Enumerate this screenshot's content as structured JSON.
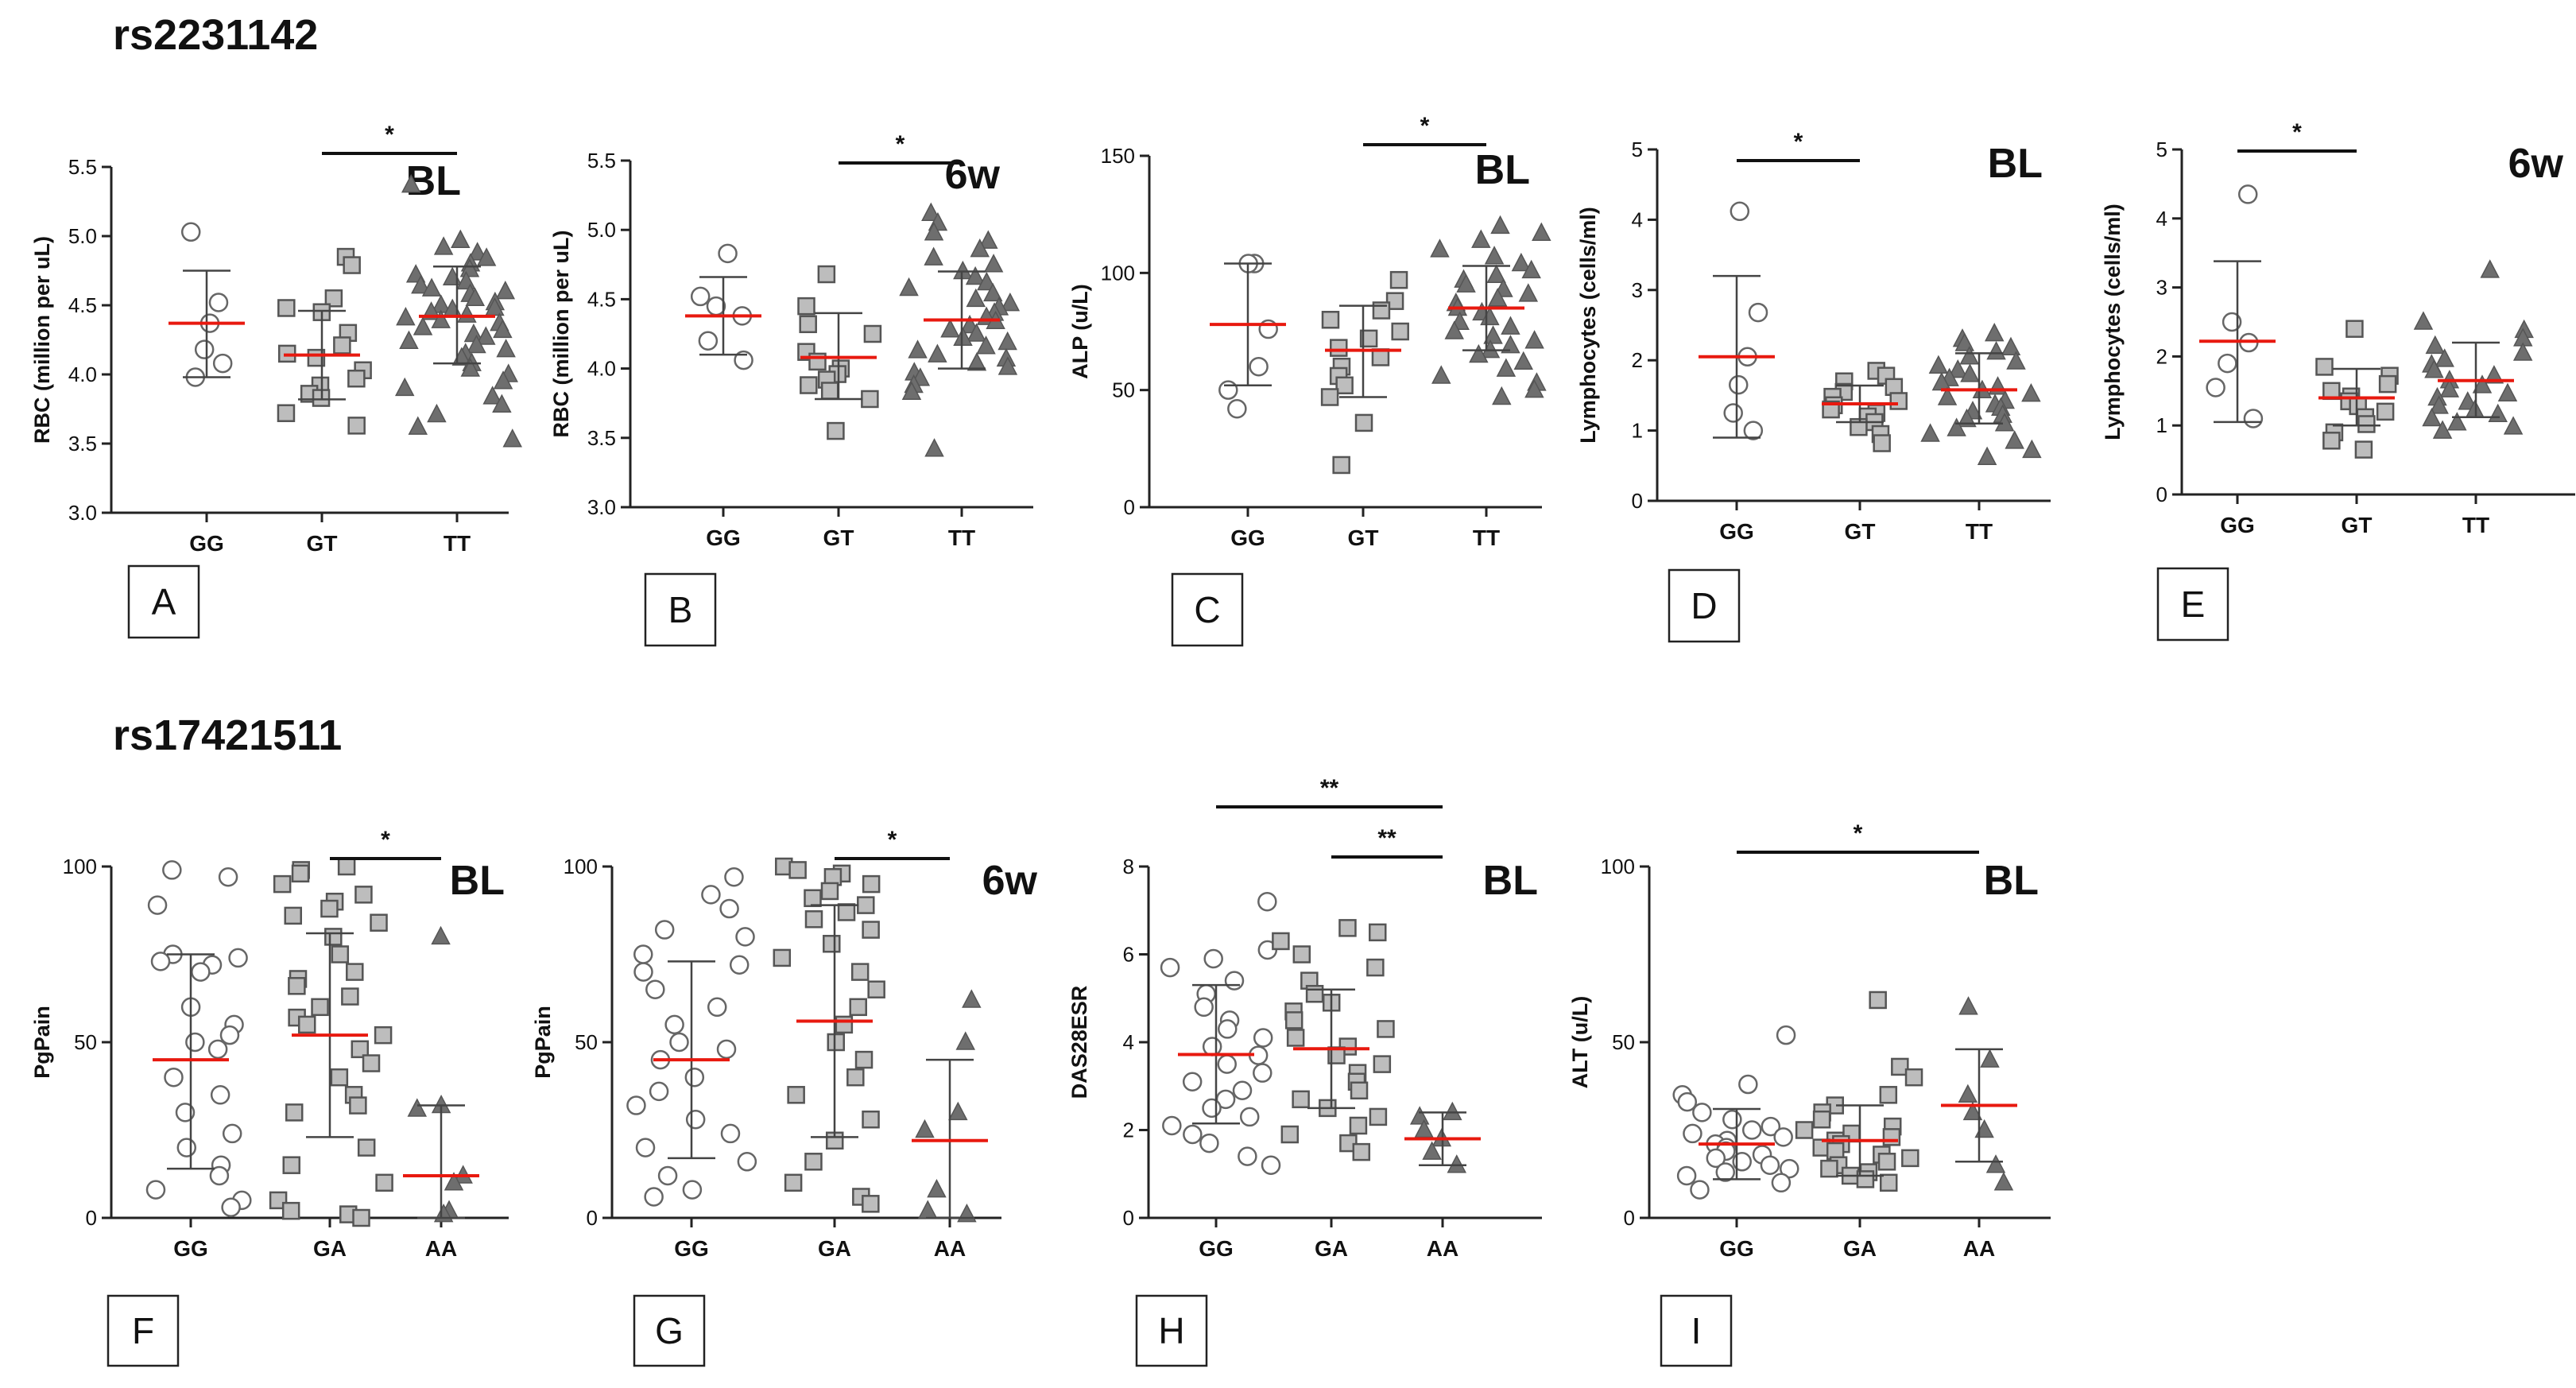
{
  "figure": {
    "section_labels": [
      "rs2231142",
      "rs17421511"
    ]
  },
  "chart_data": [
    {
      "panel": "A",
      "type": "scatter",
      "timepoint": "BL",
      "ylabel": "RBC (million per uL)",
      "ylim": [
        3.0,
        5.5
      ],
      "yticks": [
        "3.0",
        "3.5",
        "4.0",
        "4.5",
        "5.0",
        "5.5"
      ],
      "categories": [
        "GG",
        "GT",
        "TT"
      ],
      "groups": [
        {
          "name": "GG",
          "marker": "circle",
          "mean": 4.37,
          "sd": [
            3.98,
            4.75
          ],
          "values": [
            5.03,
            4.52,
            4.37,
            4.18,
            3.98,
            4.08
          ]
        },
        {
          "name": "GT",
          "marker": "square",
          "mean": 4.14,
          "sd": [
            3.82,
            4.46
          ],
          "values": [
            4.85,
            4.79,
            4.55,
            4.48,
            4.45,
            4.3,
            4.21,
            4.15,
            4.12,
            4.03,
            3.97,
            3.92,
            3.86,
            3.83,
            3.72,
            3.63
          ]
        },
        {
          "name": "TT",
          "marker": "triangle",
          "mean": 4.42,
          "sd": [
            4.08,
            4.78
          ],
          "values": [
            5.37,
            4.97,
            4.92,
            4.88,
            4.84,
            4.8,
            4.76,
            4.72,
            4.7,
            4.67,
            4.64,
            4.62,
            4.6,
            4.58,
            4.55,
            4.52,
            4.5,
            4.48,
            4.47,
            4.45,
            4.43,
            4.41,
            4.39,
            4.37,
            4.34,
            4.32,
            4.29,
            4.27,
            4.24,
            4.21,
            4.18,
            4.15,
            4.12,
            4.08,
            4.04,
            4.0,
            3.95,
            3.9,
            3.84,
            3.78,
            3.71,
            3.62,
            3.53
          ]
        }
      ],
      "comparisons": [
        {
          "from": "GT",
          "to": "TT",
          "label": "*"
        }
      ]
    },
    {
      "panel": "B",
      "type": "scatter",
      "timepoint": "6w",
      "ylabel": "RBC (million per uL)",
      "ylim": [
        3.0,
        5.5
      ],
      "yticks": [
        "3.0",
        "3.5",
        "4.0",
        "4.5",
        "5.0",
        "5.5"
      ],
      "categories": [
        "GG",
        "GT",
        "TT"
      ],
      "groups": [
        {
          "name": "GG",
          "marker": "circle",
          "mean": 4.38,
          "sd": [
            4.1,
            4.66
          ],
          "values": [
            4.83,
            4.52,
            4.45,
            4.38,
            4.2,
            4.06
          ]
        },
        {
          "name": "GT",
          "marker": "square",
          "mean": 4.08,
          "sd": [
            3.78,
            4.4
          ],
          "values": [
            4.68,
            4.45,
            4.32,
            4.25,
            4.12,
            4.05,
            4.0,
            3.96,
            3.92,
            3.88,
            3.84,
            3.78,
            3.55
          ]
        },
        {
          "name": "TT",
          "marker": "triangle",
          "mean": 4.35,
          "sd": [
            4.0,
            4.7
          ],
          "values": [
            5.12,
            5.05,
            4.98,
            4.92,
            4.86,
            4.8,
            4.75,
            4.7,
            4.66,
            4.62,
            4.58,
            4.54,
            4.5,
            4.47,
            4.44,
            4.4,
            4.37,
            4.34,
            4.31,
            4.28,
            4.25,
            4.22,
            4.19,
            4.16,
            4.13,
            4.1,
            4.07,
            4.04,
            4.01,
            3.97,
            3.93,
            3.88,
            3.83,
            3.42
          ]
        }
      ],
      "comparisons": [
        {
          "from": "GT",
          "to": "TT",
          "label": "*"
        }
      ]
    },
    {
      "panel": "C",
      "type": "scatter",
      "timepoint": "BL",
      "ylabel": "ALP (u/L)",
      "ylim": [
        0,
        150
      ],
      "yticks": [
        "0",
        "50",
        "100",
        "150"
      ],
      "categories": [
        "GG",
        "GT",
        "TT"
      ],
      "groups": [
        {
          "name": "GG",
          "marker": "circle",
          "mean": 78,
          "sd": [
            52,
            104
          ],
          "values": [
            104,
            104,
            76,
            60,
            50,
            42
          ]
        },
        {
          "name": "GT",
          "marker": "square",
          "mean": 67,
          "sd": [
            47,
            86
          ],
          "values": [
            97,
            88,
            84,
            80,
            75,
            72,
            68,
            64,
            60,
            56,
            52,
            47,
            36,
            18
          ]
        },
        {
          "name": "TT",
          "marker": "triangle",
          "mean": 85,
          "sd": [
            67,
            103
          ],
          "values": [
            120,
            117,
            114,
            110,
            107,
            104,
            101,
            99,
            97,
            95,
            93,
            91,
            89,
            87,
            85,
            83,
            81,
            79,
            77,
            75,
            73,
            71,
            69,
            67,
            65,
            62,
            59,
            56,
            53,
            50,
            47
          ]
        }
      ],
      "comparisons": [
        {
          "from": "GT",
          "to": "TT",
          "label": "*"
        }
      ]
    },
    {
      "panel": "D",
      "type": "scatter",
      "timepoint": "BL",
      "ylabel": "Lymphocytes (cells/ml)",
      "ylim": [
        0,
        5
      ],
      "yticks": [
        "0",
        "1",
        "2",
        "3",
        "4",
        "5"
      ],
      "categories": [
        "GG",
        "GT",
        "TT"
      ],
      "groups": [
        {
          "name": "GG",
          "marker": "circle",
          "mean": 2.05,
          "sd": [
            0.9,
            3.2
          ],
          "values": [
            4.12,
            2.68,
            2.05,
            1.65,
            1.25,
            1.0
          ]
        },
        {
          "name": "GT",
          "marker": "square",
          "mean": 1.38,
          "sd": [
            1.12,
            1.64
          ],
          "values": [
            1.85,
            1.78,
            1.7,
            1.62,
            1.55,
            1.48,
            1.42,
            1.36,
            1.3,
            1.25,
            1.2,
            1.12,
            1.05,
            0.95,
            0.82
          ]
        },
        {
          "name": "TT",
          "marker": "triangle",
          "mean": 1.58,
          "sd": [
            1.1,
            2.1
          ],
          "values": [
            2.38,
            2.3,
            2.24,
            2.18,
            2.12,
            2.05,
            1.98,
            1.92,
            1.86,
            1.8,
            1.74,
            1.68,
            1.62,
            1.57,
            1.52,
            1.47,
            1.42,
            1.37,
            1.32,
            1.27,
            1.22,
            1.16,
            1.1,
            1.03,
            0.95,
            0.85,
            0.72,
            0.62
          ]
        }
      ],
      "comparisons": [
        {
          "from": "GG",
          "to": "GT",
          "label": "*"
        }
      ]
    },
    {
      "panel": "E",
      "type": "scatter",
      "timepoint": "6w",
      "ylabel": "Lymphocytes (cells/ml)",
      "ylim": [
        0,
        5
      ],
      "yticks": [
        "0",
        "1",
        "2",
        "3",
        "4",
        "5"
      ],
      "categories": [
        "GG",
        "GT",
        "TT"
      ],
      "groups": [
        {
          "name": "GG",
          "marker": "circle",
          "mean": 2.22,
          "sd": [
            1.05,
            3.38
          ],
          "values": [
            4.35,
            2.5,
            2.2,
            1.9,
            1.55,
            1.1
          ]
        },
        {
          "name": "GT",
          "marker": "square",
          "mean": 1.4,
          "sd": [
            1.0,
            1.82
          ],
          "values": [
            2.4,
            1.85,
            1.72,
            1.6,
            1.5,
            1.42,
            1.35,
            1.28,
            1.2,
            1.12,
            1.02,
            0.9,
            0.78,
            0.65
          ]
        },
        {
          "name": "TT",
          "marker": "triangle",
          "mean": 1.65,
          "sd": [
            1.12,
            2.2
          ],
          "values": [
            3.25,
            2.5,
            2.38,
            2.26,
            2.15,
            2.05,
            1.96,
            1.88,
            1.8,
            1.72,
            1.65,
            1.58,
            1.52,
            1.46,
            1.4,
            1.34,
            1.28,
            1.22,
            1.16,
            1.1,
            1.04,
            0.98,
            0.92
          ]
        }
      ],
      "comparisons": [
        {
          "from": "GG",
          "to": "GT",
          "label": "*"
        }
      ]
    },
    {
      "panel": "F",
      "type": "scatter",
      "timepoint": "BL",
      "ylabel": "PgPain",
      "ylim": [
        0,
        100
      ],
      "yticks": [
        "0",
        "50",
        "100"
      ],
      "categories": [
        "GG",
        "GA",
        "AA"
      ],
      "groups": [
        {
          "name": "GG",
          "marker": "circle",
          "mean": 45,
          "sd": [
            14,
            75
          ],
          "values": [
            99,
            97,
            89,
            75,
            74,
            73,
            72,
            70,
            60,
            55,
            52,
            50,
            48,
            40,
            35,
            30,
            24,
            20,
            15,
            12,
            8,
            5,
            3
          ]
        },
        {
          "name": "GA",
          "marker": "square",
          "mean": 52,
          "sd": [
            23,
            81
          ],
          "values": [
            100,
            99,
            98,
            95,
            92,
            90,
            88,
            86,
            84,
            80,
            75,
            70,
            68,
            66,
            63,
            60,
            57,
            55,
            52,
            48,
            44,
            40,
            35,
            32,
            30,
            20,
            15,
            10,
            5,
            2,
            1,
            0
          ]
        },
        {
          "name": "AA",
          "marker": "triangle",
          "mean": 12,
          "sd": [
            0,
            32
          ],
          "values": [
            80,
            32,
            31,
            12,
            10,
            2,
            1
          ]
        }
      ],
      "comparisons": [
        {
          "from": "GA",
          "to": "AA",
          "label": "*"
        }
      ]
    },
    {
      "panel": "G",
      "type": "scatter",
      "timepoint": "6w",
      "ylabel": "PgPain",
      "ylim": [
        0,
        100
      ],
      "yticks": [
        "0",
        "50",
        "100"
      ],
      "categories": [
        "GG",
        "GA",
        "AA"
      ],
      "groups": [
        {
          "name": "GG",
          "marker": "circle",
          "mean": 45,
          "sd": [
            17,
            73
          ],
          "values": [
            97,
            92,
            88,
            82,
            80,
            75,
            72,
            70,
            65,
            60,
            55,
            50,
            48,
            45,
            40,
            36,
            32,
            28,
            24,
            20,
            16,
            12,
            8,
            6
          ]
        },
        {
          "name": "GA",
          "marker": "square",
          "mean": 56,
          "sd": [
            23,
            89
          ],
          "values": [
            100,
            99,
            98,
            97,
            95,
            93,
            91,
            89,
            87,
            85,
            82,
            78,
            74,
            70,
            65,
            60,
            55,
            50,
            45,
            40,
            35,
            28,
            22,
            16,
            10,
            6,
            4
          ]
        },
        {
          "name": "AA",
          "marker": "triangle",
          "mean": 22,
          "sd": [
            0,
            45
          ],
          "values": [
            62,
            50,
            30,
            25,
            8,
            2,
            1
          ]
        }
      ],
      "comparisons": [
        {
          "from": "GA",
          "to": "AA",
          "label": "*"
        }
      ]
    },
    {
      "panel": "H",
      "type": "scatter",
      "timepoint": "BL",
      "ylabel": "DAS28ESR",
      "ylim": [
        0,
        8
      ],
      "yticks": [
        "0",
        "2",
        "4",
        "6",
        "8"
      ],
      "categories": [
        "GG",
        "GA",
        "AA"
      ],
      "groups": [
        {
          "name": "GG",
          "marker": "circle",
          "mean": 3.72,
          "sd": [
            2.15,
            5.3
          ],
          "values": [
            7.2,
            6.1,
            5.9,
            5.7,
            5.4,
            5.1,
            4.8,
            4.5,
            4.3,
            4.1,
            3.9,
            3.7,
            3.5,
            3.3,
            3.1,
            2.9,
            2.7,
            2.5,
            2.3,
            2.1,
            1.9,
            1.7,
            1.4,
            1.2
          ]
        },
        {
          "name": "GA",
          "marker": "square",
          "mean": 3.85,
          "sd": [
            2.5,
            5.2
          ],
          "values": [
            6.6,
            6.5,
            6.3,
            6.0,
            5.7,
            5.4,
            5.1,
            4.9,
            4.7,
            4.5,
            4.3,
            4.1,
            3.9,
            3.7,
            3.5,
            3.3,
            3.1,
            2.9,
            2.7,
            2.5,
            2.3,
            2.1,
            1.9,
            1.7,
            1.5
          ]
        },
        {
          "name": "AA",
          "marker": "triangle",
          "mean": 1.8,
          "sd": [
            1.2,
            2.4
          ],
          "values": [
            2.4,
            2.3,
            2.0,
            1.8,
            1.5,
            1.2
          ]
        }
      ],
      "comparisons": [
        {
          "from": "GG",
          "to": "AA",
          "label": "**"
        },
        {
          "from": "GA",
          "to": "AA",
          "label": "**"
        }
      ]
    },
    {
      "panel": "I",
      "type": "scatter",
      "timepoint": "BL",
      "ylabel": "ALT (u/L)",
      "ylim": [
        0,
        100
      ],
      "yticks": [
        "0",
        "50",
        "100"
      ],
      "categories": [
        "GG",
        "GA",
        "AA"
      ],
      "groups": [
        {
          "name": "GG",
          "marker": "circle",
          "mean": 21,
          "sd": [
            11,
            31
          ],
          "values": [
            52,
            38,
            35,
            33,
            30,
            28,
            26,
            25,
            24,
            23,
            22,
            21,
            20,
            19,
            18,
            17,
            16,
            15,
            14,
            13,
            12,
            10,
            8
          ]
        },
        {
          "name": "GA",
          "marker": "square",
          "mean": 22,
          "sd": [
            12,
            32
          ],
          "values": [
            62,
            43,
            40,
            35,
            32,
            30,
            28,
            26,
            25,
            24,
            23,
            22,
            21,
            20,
            19,
            18,
            17,
            16,
            15,
            14,
            13,
            12,
            11,
            10
          ]
        },
        {
          "name": "AA",
          "marker": "triangle",
          "mean": 32,
          "sd": [
            16,
            48
          ],
          "values": [
            60,
            45,
            35,
            30,
            25,
            15,
            10
          ]
        }
      ],
      "comparisons": [
        {
          "from": "GG",
          "to": "AA",
          "label": "*"
        }
      ]
    }
  ]
}
